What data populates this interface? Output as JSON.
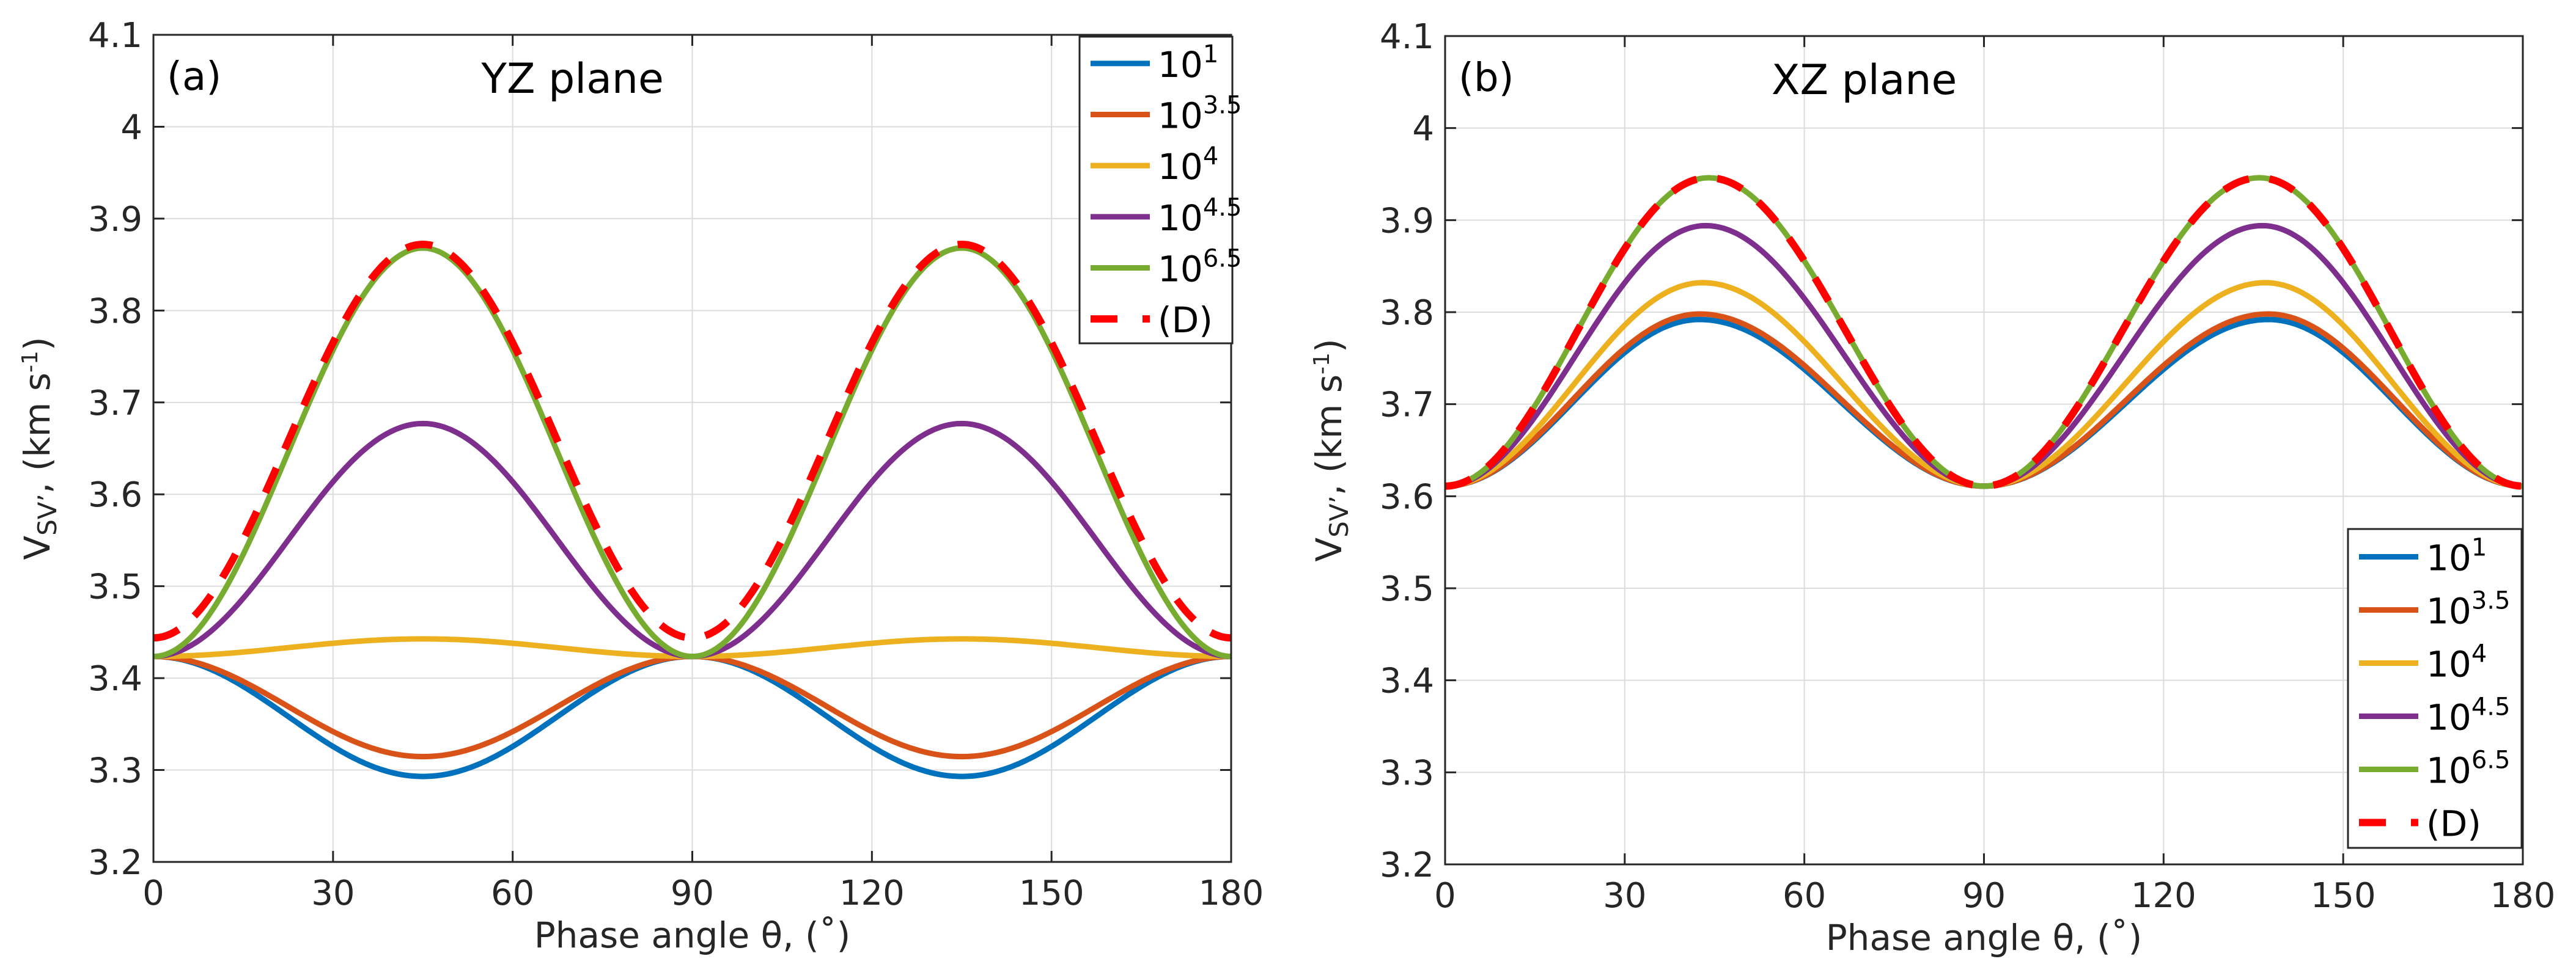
{
  "chart_data": [
    {
      "type": "line",
      "panel_tag": "(a)",
      "title": "YZ plane",
      "xlabel": "Phase angle θ, (˚)",
      "ylabel": {
        "main": "V",
        "sub": "SV’",
        "rest": ", (km s",
        "sup": "-1",
        "close": ")"
      },
      "xlim": [
        0,
        180
      ],
      "ylim": [
        3.2,
        4.1
      ],
      "xticks": [
        0,
        30,
        60,
        90,
        120,
        150,
        180
      ],
      "yticks": [
        3.2,
        3.3,
        3.4,
        3.5,
        3.6,
        3.7,
        3.8,
        3.9,
        4,
        4.1
      ],
      "xtick_labels": [
        "0",
        "30",
        "60",
        "90",
        "120",
        "150",
        "180"
      ],
      "ytick_labels": [
        "3.2",
        "3.3",
        "3.4",
        "3.5",
        "3.6",
        "3.7",
        "3.8",
        "3.9",
        "4",
        "4.1"
      ],
      "grid": true,
      "legend_placement": "top-right",
      "series": [
        {
          "name": "10^1",
          "label_base": "10",
          "label_exp": "1",
          "color": "#0072BD",
          "style": "solid",
          "base": 3.4236,
          "extreme": 3.293,
          "peak_angle": 45
        },
        {
          "name": "10^3.5",
          "label_base": "10",
          "label_exp": "3.5",
          "color": "#D95319",
          "style": "solid",
          "base": 3.4236,
          "extreme": 3.3146,
          "peak_angle": 45
        },
        {
          "name": "10^4",
          "label_base": "10",
          "label_exp": "4",
          "color": "#EDB120",
          "style": "solid",
          "base": 3.4236,
          "extreme": 3.4427,
          "peak_angle": 45
        },
        {
          "name": "10^4.5",
          "label_base": "10",
          "label_exp": "4.5",
          "color": "#7E2F8E",
          "style": "solid",
          "base": 3.4236,
          "extreme": 3.677,
          "peak_angle": 45
        },
        {
          "name": "10^6.5",
          "label_base": "10",
          "label_exp": "6.5",
          "color": "#77AC30",
          "style": "solid",
          "base": 3.4236,
          "extreme": 3.868,
          "peak_angle": 45
        },
        {
          "name": "(D)",
          "label_base": "(D)",
          "label_exp": "",
          "color": "#FF0000",
          "style": "dashed",
          "base": 3.4438,
          "extreme": 3.872,
          "peak_angle": 45
        }
      ]
    },
    {
      "type": "line",
      "panel_tag": "(b)",
      "title": "XZ plane",
      "xlabel": "Phase angle θ, (˚)",
      "ylabel": {
        "main": "V",
        "sub": "SV’",
        "rest": ", (km s",
        "sup": "-1",
        "close": ")"
      },
      "xlim": [
        0,
        180
      ],
      "ylim": [
        3.2,
        4.1
      ],
      "xticks": [
        0,
        30,
        60,
        90,
        120,
        150,
        180
      ],
      "yticks": [
        3.2,
        3.3,
        3.4,
        3.5,
        3.6,
        3.7,
        3.8,
        3.9,
        4,
        4.1
      ],
      "xtick_labels": [
        "0",
        "30",
        "60",
        "90",
        "120",
        "150",
        "180"
      ],
      "ytick_labels": [
        "3.2",
        "3.3",
        "3.4",
        "3.5",
        "3.6",
        "3.7",
        "3.8",
        "3.9",
        "4",
        "4.1"
      ],
      "grid": true,
      "legend_placement": "bottom-right",
      "series": [
        {
          "name": "10^1",
          "label_base": "10",
          "label_exp": "1",
          "color": "#0072BD",
          "style": "solid",
          "base": 3.611,
          "extreme": 3.792,
          "peak_angle": 42.5
        },
        {
          "name": "10^3.5",
          "label_base": "10",
          "label_exp": "3.5",
          "color": "#D95319",
          "style": "solid",
          "base": 3.611,
          "extreme": 3.798,
          "peak_angle": 42.5
        },
        {
          "name": "10^4",
          "label_base": "10",
          "label_exp": "4",
          "color": "#EDB120",
          "style": "solid",
          "base": 3.611,
          "extreme": 3.832,
          "peak_angle": 43
        },
        {
          "name": "10^4.5",
          "label_base": "10",
          "label_exp": "4.5",
          "color": "#7E2F8E",
          "style": "solid",
          "base": 3.611,
          "extreme": 3.894,
          "peak_angle": 43.5
        },
        {
          "name": "10^6.5",
          "label_base": "10",
          "label_exp": "6.5",
          "color": "#77AC30",
          "style": "solid",
          "base": 3.611,
          "extreme": 3.946,
          "peak_angle": 44
        },
        {
          "name": "(D)",
          "label_base": "(D)",
          "label_exp": "",
          "color": "#FF0000",
          "style": "dashed",
          "base": 3.611,
          "extreme": 3.946,
          "peak_angle": 44
        }
      ]
    }
  ]
}
